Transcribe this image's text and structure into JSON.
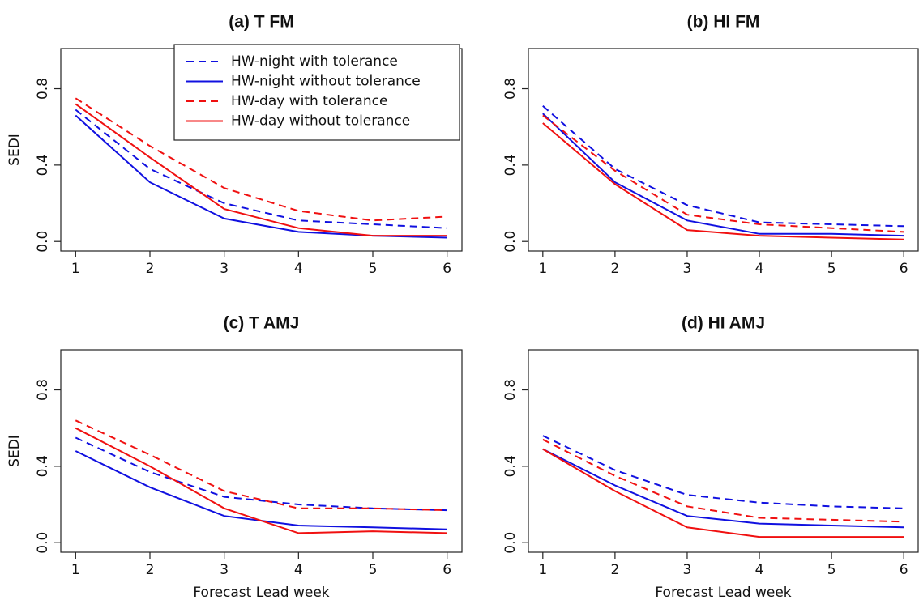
{
  "chart_data": [
    {
      "type": "line",
      "title": "(a) T FM",
      "ylabel": "SEDI",
      "legend": "top-right",
      "x": [
        1,
        2,
        3,
        4,
        5,
        6
      ],
      "xlim": [
        0.8,
        6.2
      ],
      "xticks": [
        1,
        2,
        3,
        4,
        5,
        6
      ],
      "ylim": [
        -0.05,
        1.01
      ],
      "yticks": [
        {
          "value": 0,
          "label": "0.0"
        },
        0.4,
        0.8
      ],
      "series": [
        {
          "name": "HW-night with tolerance",
          "color": "#1010e0",
          "dash": true,
          "values": [
            0.69,
            0.38,
            0.2,
            0.11,
            0.09,
            0.07
          ]
        },
        {
          "name": "HW-night without tolerance",
          "color": "#1010e0",
          "dash": false,
          "values": [
            0.66,
            0.31,
            0.12,
            0.05,
            0.03,
            0.02
          ]
        },
        {
          "name": "HW-day with tolerance",
          "color": "#f01010",
          "dash": true,
          "values": [
            0.75,
            0.5,
            0.28,
            0.16,
            0.11,
            0.13
          ]
        },
        {
          "name": "HW-day without tolerance",
          "color": "#f01010",
          "dash": false,
          "values": [
            0.72,
            0.44,
            0.17,
            0.07,
            0.03,
            0.03
          ]
        }
      ]
    },
    {
      "type": "line",
      "title": "(b) HI FM",
      "x": [
        1,
        2,
        3,
        4,
        5,
        6
      ],
      "xlim": [
        0.8,
        6.2
      ],
      "xticks": [
        1,
        2,
        3,
        4,
        5,
        6
      ],
      "ylim": [
        -0.05,
        1.01
      ],
      "yticks": [
        {
          "value": 0,
          "label": "0.0"
        },
        0.4,
        0.8
      ],
      "series": [
        {
          "color": "#1010e0",
          "dash": true,
          "values": [
            0.71,
            0.38,
            0.19,
            0.1,
            0.09,
            0.08
          ]
        },
        {
          "color": "#1010e0",
          "dash": false,
          "values": [
            0.67,
            0.31,
            0.11,
            0.04,
            0.04,
            0.03
          ]
        },
        {
          "color": "#f01010",
          "dash": true,
          "values": [
            0.66,
            0.37,
            0.14,
            0.09,
            0.07,
            0.05
          ]
        },
        {
          "color": "#f01010",
          "dash": false,
          "values": [
            0.62,
            0.3,
            0.06,
            0.03,
            0.02,
            0.01
          ]
        }
      ]
    },
    {
      "type": "line",
      "title": "(c) T AMJ",
      "ylabel": "SEDI",
      "xlabel": "Forecast Lead week",
      "x": [
        1,
        2,
        3,
        4,
        5,
        6
      ],
      "xlim": [
        0.8,
        6.2
      ],
      "xticks": [
        1,
        2,
        3,
        4,
        5,
        6
      ],
      "ylim": [
        -0.05,
        1.01
      ],
      "yticks": [
        {
          "value": 0,
          "label": "0.0"
        },
        0.4,
        0.8
      ],
      "series": [
        {
          "color": "#1010e0",
          "dash": true,
          "values": [
            0.55,
            0.37,
            0.24,
            0.2,
            0.18,
            0.17
          ]
        },
        {
          "color": "#1010e0",
          "dash": false,
          "values": [
            0.48,
            0.29,
            0.14,
            0.09,
            0.08,
            0.07
          ]
        },
        {
          "color": "#f01010",
          "dash": true,
          "values": [
            0.64,
            0.46,
            0.27,
            0.18,
            0.18,
            0.17
          ]
        },
        {
          "color": "#f01010",
          "dash": false,
          "values": [
            0.6,
            0.4,
            0.18,
            0.05,
            0.06,
            0.05
          ]
        }
      ]
    },
    {
      "type": "line",
      "title": "(d) HI AMJ",
      "xlabel": "Forecast Lead week",
      "x": [
        1,
        2,
        3,
        4,
        5,
        6
      ],
      "xlim": [
        0.8,
        6.2
      ],
      "xticks": [
        1,
        2,
        3,
        4,
        5,
        6
      ],
      "ylim": [
        -0.05,
        1.01
      ],
      "yticks": [
        {
          "value": 0,
          "label": "0.0"
        },
        0.4,
        0.8
      ],
      "series": [
        {
          "color": "#1010e0",
          "dash": true,
          "values": [
            0.56,
            0.38,
            0.25,
            0.21,
            0.19,
            0.18
          ]
        },
        {
          "color": "#1010e0",
          "dash": false,
          "values": [
            0.49,
            0.3,
            0.14,
            0.1,
            0.09,
            0.08
          ]
        },
        {
          "color": "#f01010",
          "dash": true,
          "values": [
            0.54,
            0.35,
            0.19,
            0.13,
            0.12,
            0.11
          ]
        },
        {
          "color": "#f01010",
          "dash": false,
          "values": [
            0.49,
            0.27,
            0.08,
            0.03,
            0.03,
            0.03
          ]
        }
      ]
    }
  ]
}
